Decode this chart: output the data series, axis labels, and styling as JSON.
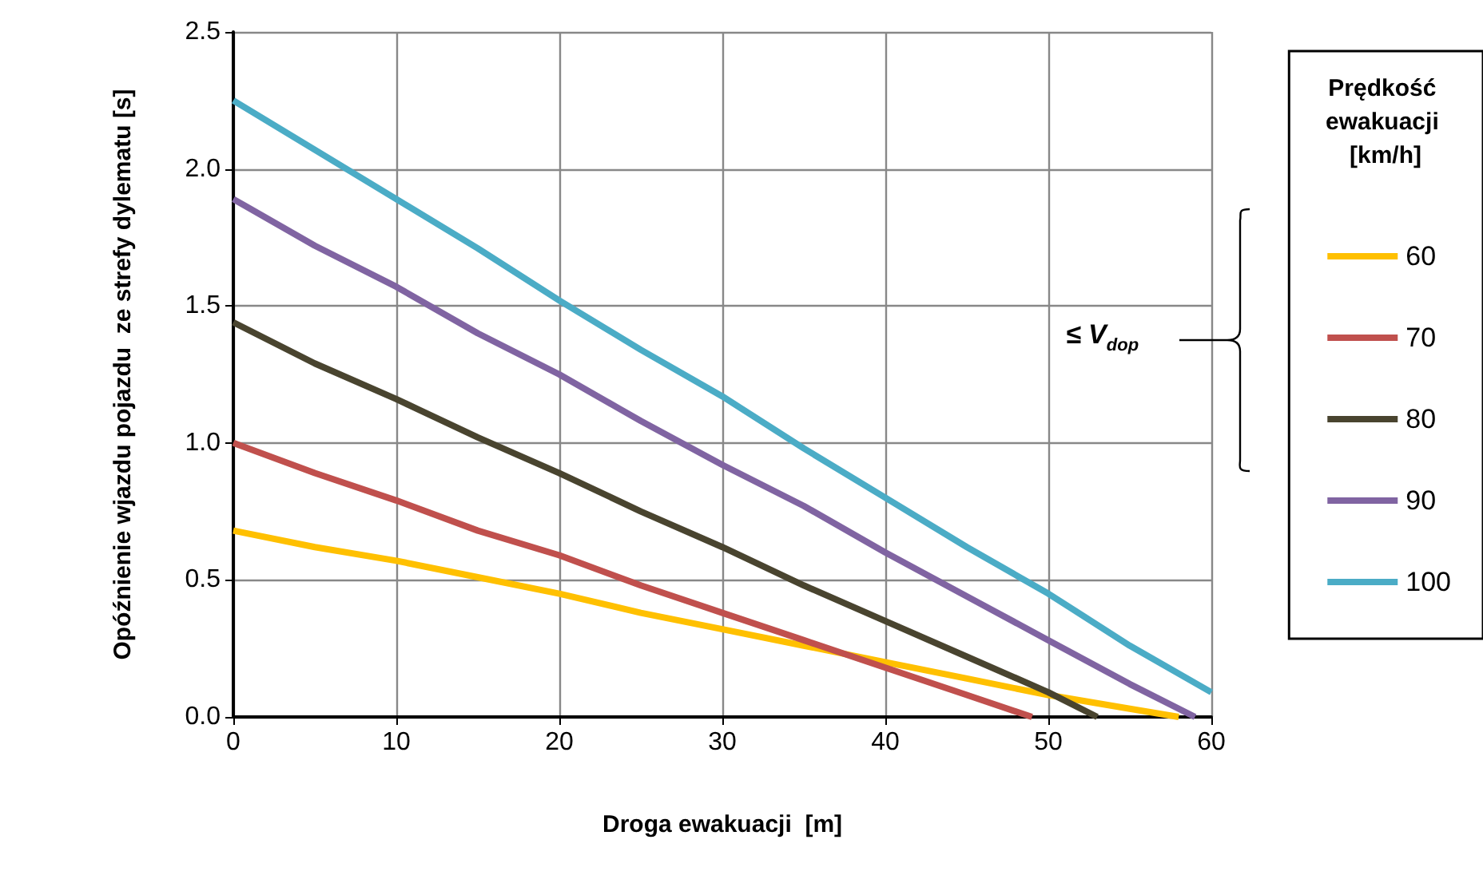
{
  "chart_data": {
    "type": "line",
    "xlabel": "Droga ewakuacji  [m]",
    "ylabel": "Opóźnienie wjazdu pojazdu  ze strefy dylematu [s]",
    "legend_title": "Prędkość ewakuacji [km/h]",
    "legend": "right",
    "grid": true,
    "marker": "none",
    "line_style": "solid",
    "annotations": [
      "≤ V$_{dop}$"
    ],
    "xlim": [
      0,
      60
    ],
    "xticks": [
      0,
      10,
      20,
      30,
      40,
      50,
      60
    ],
    "ylim": [
      0,
      2.5
    ],
    "yticks": [
      {
        "value": 0,
        "label": "0.0"
      },
      {
        "value": 0.5,
        "label": "0.5"
      },
      {
        "value": 1,
        "label": "1.0"
      },
      {
        "value": 1.5,
        "label": "1.5"
      },
      {
        "value": 2,
        "label": "2.0"
      },
      {
        "value": 2.5,
        "label": "2.5"
      }
    ],
    "series": [
      {
        "name": "60",
        "color": "#ffc000",
        "x": [
          0,
          5,
          10,
          15,
          20,
          25,
          30,
          35,
          40,
          45,
          50,
          55,
          58
        ],
        "values": [
          0.68,
          0.62,
          0.57,
          0.51,
          0.45,
          0.38,
          0.32,
          0.26,
          0.2,
          0.14,
          0.08,
          0.03,
          0
        ]
      },
      {
        "name": "70",
        "color": "#c0504d",
        "x": [
          0,
          5,
          10,
          15,
          20,
          25,
          30,
          35,
          40,
          45,
          49
        ],
        "values": [
          1.0,
          0.89,
          0.79,
          0.68,
          0.59,
          0.48,
          0.38,
          0.28,
          0.18,
          0.08,
          0
        ]
      },
      {
        "name": "80",
        "color": "#49442f",
        "x": [
          0,
          5,
          10,
          15,
          20,
          25,
          30,
          35,
          40,
          45,
          50,
          53
        ],
        "values": [
          1.44,
          1.29,
          1.16,
          1.02,
          0.89,
          0.75,
          0.62,
          0.48,
          0.35,
          0.22,
          0.09,
          0
        ]
      },
      {
        "name": "90",
        "color": "#8064a2",
        "x": [
          0,
          5,
          10,
          15,
          20,
          25,
          30,
          35,
          40,
          45,
          50,
          55,
          59
        ],
        "values": [
          1.89,
          1.72,
          1.57,
          1.4,
          1.25,
          1.08,
          0.92,
          0.77,
          0.6,
          0.44,
          0.28,
          0.12,
          0
        ]
      },
      {
        "name": "100",
        "color": "#4bacc6",
        "x": [
          0,
          5,
          10,
          15,
          20,
          25,
          30,
          35,
          40,
          45,
          50,
          55,
          60
        ],
        "values": [
          2.25,
          2.07,
          1.89,
          1.71,
          1.52,
          1.34,
          1.17,
          0.98,
          0.8,
          0.62,
          0.45,
          0.26,
          0.09
        ]
      }
    ]
  }
}
